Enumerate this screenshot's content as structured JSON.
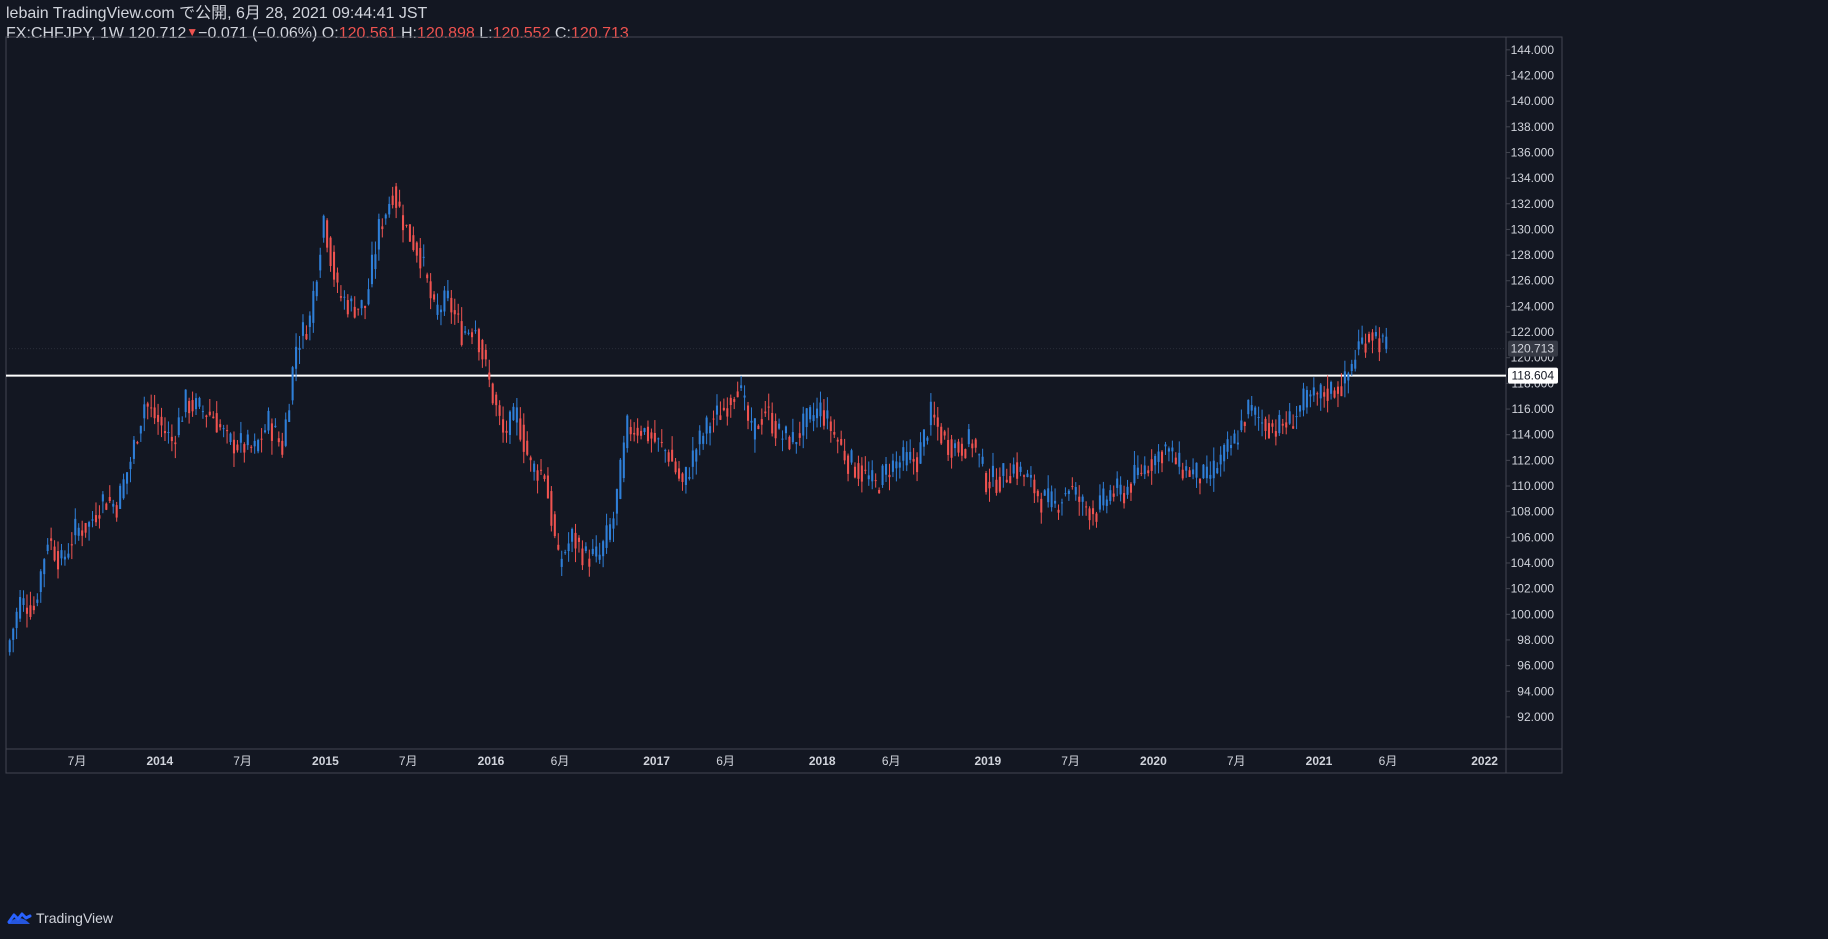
{
  "header": {
    "published_line": "lebain TradingView.com で公開, 6月 28, 2021 09:44:41 JST",
    "symbol": "FX:CHFJPY, 1W",
    "last": "120.712",
    "change": "−0.071 (−0.06%)",
    "open_label": "O:",
    "open": "120.561",
    "high_label": "H:",
    "high": "120.898",
    "low_label": "L:",
    "low": "120.552",
    "close_label": "C:",
    "close": "120.713"
  },
  "footer": {
    "brand": "TradingView",
    "logo_icon": "tradingview-logo-icon"
  },
  "colors": {
    "background": "#131722",
    "up": "#2962ff",
    "up_candle": "#2f7fd8",
    "down": "#ef5350",
    "grid": "#1e2230",
    "axis_text": "#d1d4dc",
    "hline": "#ffffff",
    "price_label_bg": "#363a45"
  },
  "chart_data": {
    "type": "candlestick",
    "symbol": "FX:CHFJPY",
    "interval": "1W",
    "x_start": "2013-02",
    "x_end": "2021-06",
    "y_ticks": [
      92,
      94,
      96,
      98,
      100,
      102,
      104,
      106,
      108,
      110,
      112,
      114,
      116,
      118,
      120,
      122,
      124,
      126,
      128,
      130,
      132,
      134,
      136,
      138,
      140,
      142,
      144
    ],
    "y_tick_labels": [
      "92.000",
      "94.000",
      "96.000",
      "98.000",
      "100.000",
      "102.000",
      "104.000",
      "106.000",
      "108.000",
      "110.000",
      "112.000",
      "114.000",
      "116.000",
      "118.000",
      "120.000",
      "122.000",
      "124.000",
      "126.000",
      "128.000",
      "130.000",
      "132.000",
      "134.000",
      "136.000",
      "138.000",
      "140.000",
      "142.000",
      "144.000"
    ],
    "ylim": [
      89.5,
      145
    ],
    "x_ticks": [
      {
        "label": "7月",
        "bold": false,
        "date": "2013-07"
      },
      {
        "label": "2014",
        "bold": true,
        "date": "2014-01"
      },
      {
        "label": "7月",
        "bold": false,
        "date": "2014-07"
      },
      {
        "label": "2015",
        "bold": true,
        "date": "2015-01"
      },
      {
        "label": "7月",
        "bold": false,
        "date": "2015-07"
      },
      {
        "label": "2016",
        "bold": true,
        "date": "2016-01"
      },
      {
        "label": "6月",
        "bold": false,
        "date": "2016-06"
      },
      {
        "label": "2017",
        "bold": true,
        "date": "2017-01"
      },
      {
        "label": "6月",
        "bold": false,
        "date": "2017-06"
      },
      {
        "label": "2018",
        "bold": true,
        "date": "2018-01"
      },
      {
        "label": "6月",
        "bold": false,
        "date": "2018-06"
      },
      {
        "label": "2019",
        "bold": true,
        "date": "2019-01"
      },
      {
        "label": "7月",
        "bold": false,
        "date": "2019-07"
      },
      {
        "label": "2020",
        "bold": true,
        "date": "2020-01"
      },
      {
        "label": "7月",
        "bold": false,
        "date": "2020-07"
      },
      {
        "label": "2021",
        "bold": true,
        "date": "2021-01"
      },
      {
        "label": "6月",
        "bold": false,
        "date": "2021-06"
      },
      {
        "label": "2022",
        "bold": true,
        "date": "2022-01"
      }
    ],
    "horizontal_line": {
      "value": 118.604,
      "label": "118.604"
    },
    "last_price": {
      "value": 120.713,
      "label": "120.713"
    },
    "close_path": [
      {
        "date": "2013-02",
        "close": 97
      },
      {
        "date": "2013-03",
        "close": 101
      },
      {
        "date": "2013-04",
        "close": 100.5
      },
      {
        "date": "2013-05",
        "close": 106
      },
      {
        "date": "2013-06",
        "close": 104
      },
      {
        "date": "2013-07",
        "close": 106.5
      },
      {
        "date": "2013-08",
        "close": 107
      },
      {
        "date": "2013-09",
        "close": 109
      },
      {
        "date": "2013-10",
        "close": 108.5
      },
      {
        "date": "2013-11",
        "close": 112
      },
      {
        "date": "2013-12",
        "close": 116.5
      },
      {
        "date": "2014-01",
        "close": 115
      },
      {
        "date": "2014-02",
        "close": 113.5
      },
      {
        "date": "2014-03",
        "close": 116.5
      },
      {
        "date": "2014-04",
        "close": 116
      },
      {
        "date": "2014-05",
        "close": 115.5
      },
      {
        "date": "2014-06",
        "close": 113.5
      },
      {
        "date": "2014-07",
        "close": 113.2
      },
      {
        "date": "2014-08",
        "close": 112.8
      },
      {
        "date": "2014-09",
        "close": 115
      },
      {
        "date": "2014-10",
        "close": 113
      },
      {
        "date": "2014-11",
        "close": 121
      },
      {
        "date": "2014-12",
        "close": 123
      },
      {
        "date": "2015-01",
        "close": 131
      },
      {
        "date": "2015-02",
        "close": 125
      },
      {
        "date": "2015-03",
        "close": 124
      },
      {
        "date": "2015-04",
        "close": 124
      },
      {
        "date": "2015-05",
        "close": 130
      },
      {
        "date": "2015-06",
        "close": 133
      },
      {
        "date": "2015-07",
        "close": 130
      },
      {
        "date": "2015-08",
        "close": 128
      },
      {
        "date": "2015-09",
        "close": 123.5
      },
      {
        "date": "2015-10",
        "close": 124.5
      },
      {
        "date": "2015-11",
        "close": 122
      },
      {
        "date": "2015-12",
        "close": 122.5
      },
      {
        "date": "2016-01",
        "close": 118
      },
      {
        "date": "2016-02",
        "close": 114
      },
      {
        "date": "2016-03",
        "close": 115.5
      },
      {
        "date": "2016-04",
        "close": 111.5
      },
      {
        "date": "2016-05",
        "close": 111
      },
      {
        "date": "2016-06",
        "close": 104
      },
      {
        "date": "2016-07",
        "close": 106
      },
      {
        "date": "2016-08",
        "close": 104.5
      },
      {
        "date": "2016-09",
        "close": 104.5
      },
      {
        "date": "2016-10",
        "close": 107.5
      },
      {
        "date": "2016-11",
        "close": 114.5
      },
      {
        "date": "2016-12",
        "close": 114.5
      },
      {
        "date": "2017-01",
        "close": 113.5
      },
      {
        "date": "2017-02",
        "close": 112.5
      },
      {
        "date": "2017-03",
        "close": 110
      },
      {
        "date": "2017-04",
        "close": 113
      },
      {
        "date": "2017-05",
        "close": 115
      },
      {
        "date": "2017-06",
        "close": 116
      },
      {
        "date": "2017-07",
        "close": 118
      },
      {
        "date": "2017-08",
        "close": 114
      },
      {
        "date": "2017-09",
        "close": 116
      },
      {
        "date": "2017-10",
        "close": 114
      },
      {
        "date": "2017-11",
        "close": 113.5
      },
      {
        "date": "2017-12",
        "close": 115
      },
      {
        "date": "2018-01",
        "close": 116
      },
      {
        "date": "2018-02",
        "close": 114
      },
      {
        "date": "2018-03",
        "close": 112
      },
      {
        "date": "2018-04",
        "close": 111
      },
      {
        "date": "2018-05",
        "close": 110
      },
      {
        "date": "2018-06",
        "close": 111.5
      },
      {
        "date": "2018-07",
        "close": 112
      },
      {
        "date": "2018-08",
        "close": 112
      },
      {
        "date": "2018-09",
        "close": 115.5
      },
      {
        "date": "2018-10",
        "close": 113.5
      },
      {
        "date": "2018-11",
        "close": 113
      },
      {
        "date": "2018-12",
        "close": 113.5
      },
      {
        "date": "2019-01",
        "close": 110.5
      },
      {
        "date": "2019-02",
        "close": 110.5
      },
      {
        "date": "2019-03",
        "close": 111.5
      },
      {
        "date": "2019-04",
        "close": 110.5
      },
      {
        "date": "2019-05",
        "close": 109
      },
      {
        "date": "2019-06",
        "close": 108.5
      },
      {
        "date": "2019-07",
        "close": 110
      },
      {
        "date": "2019-08",
        "close": 108.5
      },
      {
        "date": "2019-09",
        "close": 108
      },
      {
        "date": "2019-10",
        "close": 109.5
      },
      {
        "date": "2019-11",
        "close": 109.5
      },
      {
        "date": "2019-12",
        "close": 111
      },
      {
        "date": "2020-01",
        "close": 112
      },
      {
        "date": "2020-02",
        "close": 113
      },
      {
        "date": "2020-03",
        "close": 111.5
      },
      {
        "date": "2020-04",
        "close": 111
      },
      {
        "date": "2020-05",
        "close": 110.5
      },
      {
        "date": "2020-06",
        "close": 112
      },
      {
        "date": "2020-07",
        "close": 113.5
      },
      {
        "date": "2020-08",
        "close": 116
      },
      {
        "date": "2020-09",
        "close": 115
      },
      {
        "date": "2020-10",
        "close": 114.5
      },
      {
        "date": "2020-11",
        "close": 115
      },
      {
        "date": "2020-12",
        "close": 116.5
      },
      {
        "date": "2021-01",
        "close": 117
      },
      {
        "date": "2021-02",
        "close": 117.5
      },
      {
        "date": "2021-03",
        "close": 118
      },
      {
        "date": "2021-04",
        "close": 121
      },
      {
        "date": "2021-05",
        "close": 122
      },
      {
        "date": "2021-06",
        "close": 120.7
      }
    ]
  }
}
